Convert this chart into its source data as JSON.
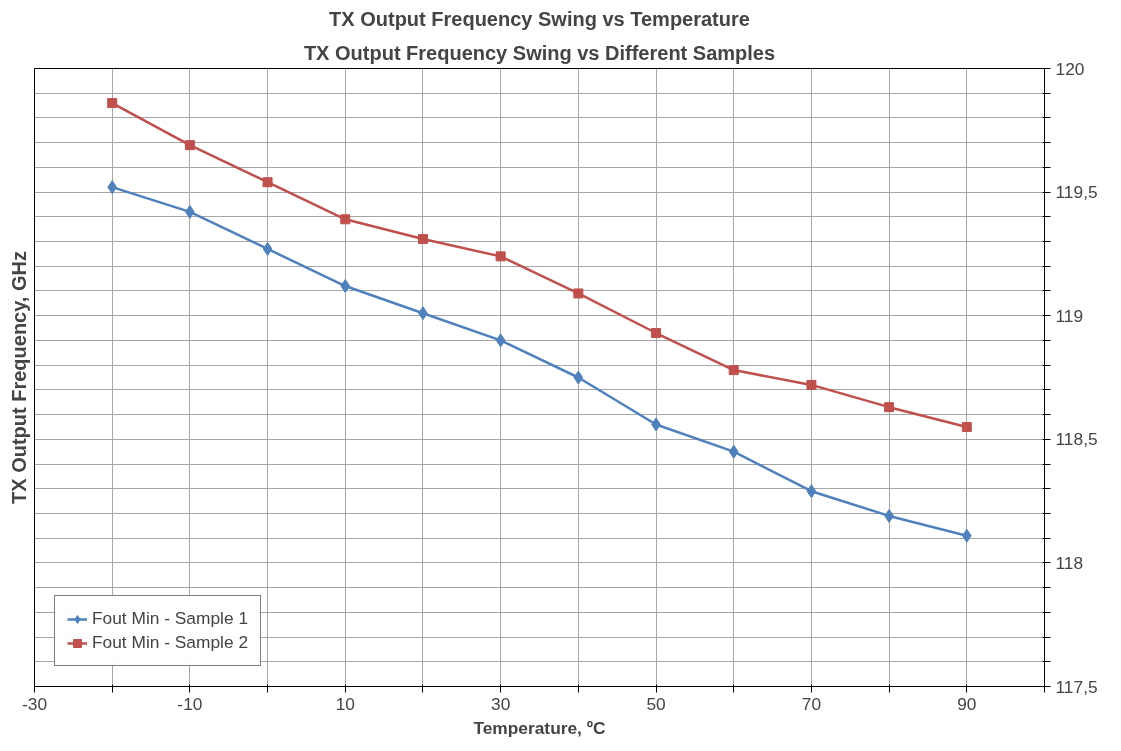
{
  "chart_data": {
    "type": "line",
    "title": "TX Output Frequency Swing vs Temperature",
    "subtitle": "TX Output Frequency Swing vs Different Samples",
    "xlabel": "Temperature, ºC",
    "ylabel": "TX Output Frequency, GHz",
    "x": [
      -20,
      -10,
      0,
      10,
      20,
      30,
      40,
      50,
      60,
      70,
      80,
      90
    ],
    "series": [
      {
        "name": "Fout Min - Sample 1",
        "color": "#4f81bd",
        "marker": "diamond",
        "values": [
          119.52,
          119.42,
          119.27,
          119.12,
          119.01,
          118.9,
          118.75,
          118.56,
          118.45,
          118.29,
          118.19,
          118.11
        ]
      },
      {
        "name": "Fout Min - Sample 2",
        "color": "#c0504d",
        "marker": "square",
        "values": [
          119.86,
          119.69,
          119.54,
          119.39,
          119.31,
          119.24,
          119.09,
          118.93,
          118.78,
          118.72,
          118.63,
          118.55
        ]
      }
    ],
    "xlim": [
      -30,
      100
    ],
    "xticks": [
      -30,
      {
        "value": -20,
        "label": null
      },
      -10,
      {
        "value": 0,
        "label": null
      },
      10,
      {
        "value": 20,
        "label": null
      },
      30,
      {
        "value": 40,
        "label": null
      },
      50,
      {
        "value": 60,
        "label": null
      },
      70,
      {
        "value": 80,
        "label": null
      },
      90,
      {
        "value": 100,
        "label": null
      }
    ],
    "ylim": [
      117.5,
      120
    ],
    "yticks": [
      {
        "value": 117.5,
        "label": "117,5"
      },
      {
        "value": 117.6,
        "label": null
      },
      {
        "value": 117.7,
        "label": null
      },
      {
        "value": 117.8,
        "label": null
      },
      {
        "value": 117.9,
        "label": null
      },
      118,
      {
        "value": 118.1,
        "label": null
      },
      {
        "value": 118.2,
        "label": null
      },
      {
        "value": 118.3,
        "label": null
      },
      {
        "value": 118.4,
        "label": null
      },
      {
        "value": 118.5,
        "label": "118,5"
      },
      {
        "value": 118.6,
        "label": null
      },
      {
        "value": 118.7,
        "label": null
      },
      {
        "value": 118.8,
        "label": null
      },
      {
        "value": 118.9,
        "label": null
      },
      119,
      {
        "value": 119.1,
        "label": null
      },
      {
        "value": 119.2,
        "label": null
      },
      {
        "value": 119.3,
        "label": null
      },
      {
        "value": 119.4,
        "label": null
      },
      {
        "value": 119.5,
        "label": "119,5"
      },
      {
        "value": 119.6,
        "label": null
      },
      {
        "value": 119.7,
        "label": null
      },
      {
        "value": 119.8,
        "label": null
      },
      {
        "value": 119.9,
        "label": null
      },
      120
    ],
    "grid": true,
    "legend": "bottom left",
    "line_style": "solid"
  }
}
